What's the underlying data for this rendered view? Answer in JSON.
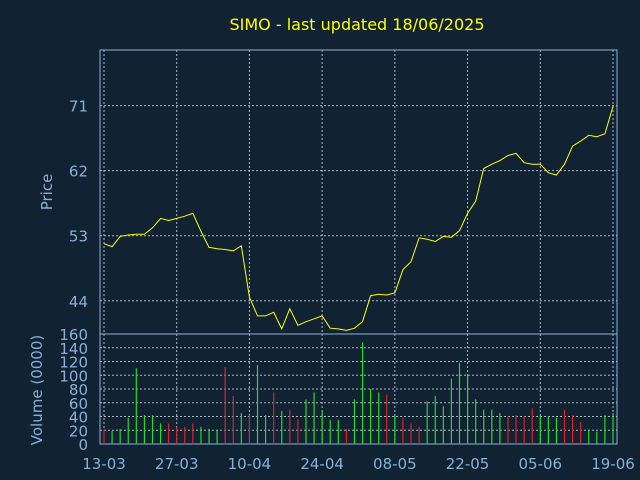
{
  "chart_data": [
    {
      "type": "line",
      "title": "SIMO - last updated 18/06/2025",
      "ylabel": "Price",
      "yticks": [
        44,
        53,
        62,
        71
      ],
      "ylim": [
        39.4,
        78.7
      ],
      "n_points": 64,
      "series": [
        {
          "color": "#ffff00",
          "values": [
            51.9,
            51.5,
            52.9,
            53.1,
            53.2,
            53.2,
            54.1,
            55.4,
            55.1,
            55.4,
            55.7,
            56.1,
            53.6,
            51.4,
            51.2,
            51.1,
            50.9,
            51.6,
            44.5,
            41.9,
            41.9,
            42.4,
            40.1,
            42.9,
            40.6,
            41.1,
            41.5,
            41.9,
            40.2,
            40.1,
            39.9,
            40.2,
            41.1,
            44.7,
            44.9,
            44.8,
            45.1,
            48.3,
            49.4,
            52.7,
            52.5,
            52.2,
            52.9,
            52.8,
            53.7,
            56.1,
            57.8,
            62.3,
            62.9,
            63.4,
            64.1,
            64.4,
            63.1,
            62.9,
            62.9,
            61.7,
            61.4,
            62.9,
            65.4,
            66.1,
            66.9,
            66.7,
            67.1,
            70.9
          ]
        }
      ]
    },
    {
      "type": "bar",
      "ylabel": "Volume (0000)",
      "yticks": [
        0,
        20,
        40,
        60,
        80,
        100,
        120,
        140,
        160
      ],
      "ylim": [
        0,
        160
      ],
      "xticks": [
        "13-03",
        "27-03",
        "10-04",
        "24-04",
        "08-05",
        "22-05",
        "05-06",
        "19-06"
      ],
      "colors": {
        "up": "#22dd22",
        "down": "#dd2222"
      },
      "bars": [
        {
          "v": 20,
          "c": "down"
        },
        {
          "v": 19,
          "c": "up"
        },
        {
          "v": 22,
          "c": "up"
        },
        {
          "v": 38,
          "c": "up"
        },
        {
          "v": 110,
          "c": "up"
        },
        {
          "v": 42,
          "c": "up"
        },
        {
          "v": 42,
          "c": "up"
        },
        {
          "v": 30,
          "c": "up"
        },
        {
          "v": 30,
          "c": "down"
        },
        {
          "v": 25,
          "c": "down"
        },
        {
          "v": 25,
          "c": "down"
        },
        {
          "v": 30,
          "c": "down"
        },
        {
          "v": 25,
          "c": "up"
        },
        {
          "v": 22,
          "c": "up"
        },
        {
          "v": 20,
          "c": "up"
        },
        {
          "v": 112,
          "c": "down"
        },
        {
          "v": 70,
          "c": "down"
        },
        {
          "v": 45,
          "c": "up"
        },
        {
          "v": 42,
          "c": "down"
        },
        {
          "v": 115,
          "c": "up"
        },
        {
          "v": 42,
          "c": "up"
        },
        {
          "v": 75,
          "c": "down"
        },
        {
          "v": 48,
          "c": "up"
        },
        {
          "v": 50,
          "c": "down"
        },
        {
          "v": 36,
          "c": "down"
        },
        {
          "v": 65,
          "c": "up"
        },
        {
          "v": 75,
          "c": "up"
        },
        {
          "v": 48,
          "c": "up"
        },
        {
          "v": 35,
          "c": "up"
        },
        {
          "v": 35,
          "c": "up"
        },
        {
          "v": 22,
          "c": "down"
        },
        {
          "v": 65,
          "c": "up"
        },
        {
          "v": 148,
          "c": "up"
        },
        {
          "v": 80,
          "c": "up"
        },
        {
          "v": 75,
          "c": "up"
        },
        {
          "v": 72,
          "c": "down"
        },
        {
          "v": 42,
          "c": "up"
        },
        {
          "v": 38,
          "c": "down"
        },
        {
          "v": 30,
          "c": "down"
        },
        {
          "v": 25,
          "c": "down"
        },
        {
          "v": 62,
          "c": "up"
        },
        {
          "v": 70,
          "c": "up"
        },
        {
          "v": 55,
          "c": "up"
        },
        {
          "v": 95,
          "c": "up"
        },
        {
          "v": 118,
          "c": "up"
        },
        {
          "v": 100,
          "c": "up"
        },
        {
          "v": 65,
          "c": "up"
        },
        {
          "v": 50,
          "c": "up"
        },
        {
          "v": 50,
          "c": "up"
        },
        {
          "v": 45,
          "c": "up"
        },
        {
          "v": 40,
          "c": "down"
        },
        {
          "v": 42,
          "c": "down"
        },
        {
          "v": 40,
          "c": "down"
        },
        {
          "v": 52,
          "c": "down"
        },
        {
          "v": 42,
          "c": "up"
        },
        {
          "v": 40,
          "c": "up"
        },
        {
          "v": 38,
          "c": "up"
        },
        {
          "v": 50,
          "c": "down"
        },
        {
          "v": 42,
          "c": "down"
        },
        {
          "v": 32,
          "c": "down"
        },
        {
          "v": 20,
          "c": "up"
        },
        {
          "v": 18,
          "c": "up"
        },
        {
          "v": 42,
          "c": "up"
        },
        {
          "v": 45,
          "c": "up"
        }
      ]
    }
  ]
}
